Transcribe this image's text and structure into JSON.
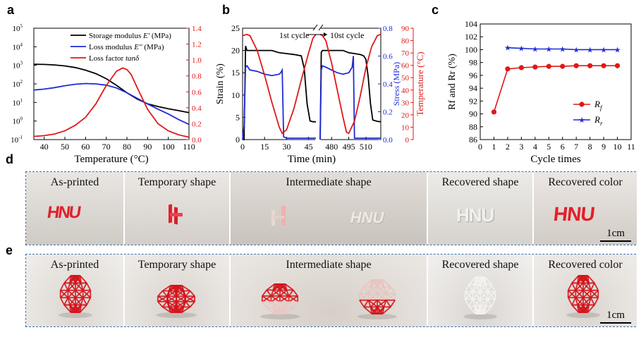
{
  "panels": {
    "a": "a",
    "b": "b",
    "c": "c",
    "d": "d",
    "e": "e"
  },
  "colors": {
    "black": "#000000",
    "blue": "#1f2bd6",
    "red": "#e01818",
    "border": "#3a6fb0"
  },
  "chart_data": [
    {
      "type": "line",
      "title": "",
      "xlabel": "Temperature (°C)",
      "ylabel_left": "",
      "ylabel_right": "",
      "xlim": [
        35,
        110
      ],
      "xticks": [
        "40",
        "50",
        "60",
        "70",
        "80",
        "90",
        "100",
        "110"
      ],
      "ylim_left_log": [
        -1,
        5
      ],
      "yticks_left": [
        {
          "base": "10",
          "exp": "5"
        },
        {
          "base": "10",
          "exp": "4"
        },
        {
          "base": "10",
          "exp": "3"
        },
        {
          "base": "10",
          "exp": "2"
        },
        {
          "base": "10",
          "exp": "1"
        },
        {
          "base": "10",
          "exp": "0"
        },
        {
          "base": "10",
          "exp": "-1"
        }
      ],
      "ylim_right": [
        0,
        1.4
      ],
      "yticks_right": [
        "0.0",
        "0.2",
        "0.4",
        "0.6",
        "0.8",
        "1.0",
        "1.2",
        "1.4"
      ],
      "legend": [
        {
          "text": "Storage modulus ",
          "italic": "E'",
          "unit": " (MPa)",
          "color": "#000000"
        },
        {
          "text": "Loss modulus ",
          "italic": "E''",
          "unit": " (MPa)",
          "color": "#1f2bd6"
        },
        {
          "text": "Loss factor ",
          "italic": "tanδ",
          "unit": "",
          "color": "#e01818"
        }
      ],
      "series": [
        {
          "name": "Storage modulus E' (MPa)",
          "axis": "left_log10",
          "color": "#000000",
          "x": [
            35,
            40,
            45,
            50,
            55,
            60,
            65,
            70,
            75,
            80,
            85,
            90,
            95,
            100,
            105,
            110
          ],
          "y": [
            3.06,
            3.05,
            3.02,
            2.97,
            2.88,
            2.74,
            2.55,
            2.28,
            1.92,
            1.52,
            1.18,
            0.93,
            0.78,
            0.66,
            0.56,
            0.45
          ]
        },
        {
          "name": "Loss modulus E'' (MPa)",
          "axis": "left_log10",
          "color": "#1f2bd6",
          "x": [
            35,
            40,
            45,
            50,
            55,
            60,
            65,
            70,
            75,
            80,
            85,
            90,
            95,
            100,
            105,
            110
          ],
          "y": [
            1.67,
            1.72,
            1.8,
            1.9,
            1.98,
            2.02,
            2.0,
            1.93,
            1.78,
            1.52,
            1.22,
            0.92,
            0.64,
            0.38,
            0.08,
            -0.18
          ]
        },
        {
          "name": "Loss factor tanδ",
          "axis": "right",
          "color": "#e01818",
          "x": [
            35,
            40,
            45,
            50,
            55,
            60,
            65,
            70,
            75,
            78,
            80,
            82,
            85,
            90,
            95,
            100,
            105,
            110
          ],
          "y": [
            0.04,
            0.05,
            0.07,
            0.11,
            0.18,
            0.28,
            0.45,
            0.68,
            0.86,
            0.9,
            0.88,
            0.82,
            0.65,
            0.38,
            0.2,
            0.11,
            0.06,
            0.03
          ]
        }
      ]
    },
    {
      "type": "line",
      "xlabel": "Time (min)",
      "ylabel_left": "Strain (%)",
      "ylabel_mid": "Stress (MPa)",
      "ylabel_right": "Temperature (°C)",
      "xticks_left": [
        "0",
        "15",
        "30",
        "45"
      ],
      "xticks_right": [
        "480",
        "495",
        "510"
      ],
      "xlim_left": [
        0,
        50
      ],
      "xlim_right": [
        470,
        523
      ],
      "ylim_strain": [
        0,
        25
      ],
      "yticks_strain": [
        "0",
        "5",
        "10",
        "15",
        "20",
        "25"
      ],
      "ylim_stress": [
        0,
        0.8
      ],
      "yticks_stress": [
        "0.0",
        "0.2",
        "0.4",
        "0.6",
        "0.8"
      ],
      "ylim_temp": [
        0,
        90
      ],
      "yticks_temp": [
        "0",
        "10",
        "20",
        "30",
        "40",
        "50",
        "60",
        "70",
        "80",
        "90"
      ],
      "annotations": [
        "1st cycle",
        "10st cycle"
      ],
      "series": [
        {
          "name": "Strain",
          "axis": "strain",
          "color": "#000000",
          "segment": "left",
          "x": [
            0,
            1,
            2,
            3,
            5,
            10,
            15,
            20,
            25,
            30,
            35,
            40,
            42,
            44,
            46,
            48,
            50
          ],
          "y": [
            0,
            0,
            21,
            20,
            20,
            20,
            20,
            20,
            19.5,
            19.3,
            19.1,
            18.8,
            16,
            8,
            4.2,
            4,
            4
          ]
        },
        {
          "name": "Strain",
          "axis": "strain",
          "color": "#000000",
          "segment": "right",
          "x": [
            470,
            471,
            472,
            475,
            480,
            485,
            490,
            495,
            500,
            505,
            508,
            510,
            512,
            514,
            516,
            520,
            523
          ],
          "y": [
            0,
            19.6,
            20,
            20,
            20,
            20,
            20,
            19.5,
            19.3,
            19.1,
            18.8,
            18,
            14,
            8,
            4.4,
            4.1,
            4
          ]
        },
        {
          "name": "Stress",
          "axis": "stress",
          "color": "#1f2bd6",
          "segment": "left",
          "x": [
            0,
            1,
            2,
            3,
            5,
            10,
            15,
            20,
            25,
            26,
            27,
            28,
            30,
            35,
            40,
            45,
            50
          ],
          "y": [
            0,
            0.1,
            0.52,
            0.53,
            0.5,
            0.49,
            0.47,
            0.46,
            0.47,
            0.48,
            0.5,
            0.02,
            0.01,
            0.01,
            0.01,
            0.01,
            0.01
          ]
        },
        {
          "name": "Stress",
          "axis": "stress",
          "color": "#1f2bd6",
          "segment": "right",
          "x": [
            470,
            471,
            472,
            475,
            480,
            485,
            490,
            495,
            498,
            499,
            500,
            505,
            510,
            515,
            520,
            523
          ],
          "y": [
            0,
            0.5,
            0.53,
            0.52,
            0.5,
            0.48,
            0.47,
            0.48,
            0.52,
            0.6,
            0.01,
            0.01,
            0.01,
            0.01,
            0.01,
            0.01
          ]
        },
        {
          "name": "Temperature",
          "axis": "temp",
          "color": "#e01818",
          "segment": "left",
          "x": [
            0,
            3,
            5,
            10,
            15,
            20,
            25,
            27,
            30,
            35,
            40,
            45,
            48,
            50
          ],
          "y": [
            84,
            85,
            84,
            72,
            52,
            30,
            10,
            5,
            8,
            25,
            48,
            70,
            82,
            85
          ]
        },
        {
          "name": "Temperature",
          "axis": "temp",
          "color": "#e01818",
          "segment": "right",
          "x": [
            470,
            472,
            475,
            480,
            485,
            490,
            493,
            495,
            500,
            505,
            510,
            515,
            520,
            523
          ],
          "y": [
            85,
            84,
            80,
            62,
            40,
            18,
            6,
            5,
            15,
            35,
            58,
            75,
            84,
            85
          ]
        }
      ]
    },
    {
      "type": "line",
      "xlabel": "Cycle times",
      "ylabel": "Rf and Rr (%)",
      "xlim": [
        0,
        11
      ],
      "xticks": [
        "0",
        "1",
        "2",
        "3",
        "4",
        "5",
        "6",
        "7",
        "8",
        "9",
        "10",
        "11"
      ],
      "ylim": [
        86,
        104
      ],
      "yticks": [
        "86",
        "88",
        "90",
        "92",
        "94",
        "96",
        "98",
        "100",
        "102",
        "104"
      ],
      "legend": [
        {
          "text": "R",
          "sub": "f",
          "color": "#e01818"
        },
        {
          "text": "R",
          "sub": "r",
          "color": "#1f2bd6"
        }
      ],
      "series": [
        {
          "name": "Rf",
          "color": "#e01818",
          "marker": "circle",
          "x": [
            1,
            2,
            3,
            4,
            5,
            6,
            7,
            8,
            9,
            10
          ],
          "y": [
            90.3,
            97.0,
            97.2,
            97.3,
            97.4,
            97.4,
            97.5,
            97.5,
            97.5,
            97.5
          ]
        },
        {
          "name": "Rr",
          "color": "#1f2bd6",
          "marker": "star",
          "x": [
            2,
            3,
            4,
            5,
            6,
            7,
            8,
            9,
            10
          ],
          "y": [
            100.3,
            100.2,
            100.1,
            100.1,
            100.1,
            100.0,
            100.0,
            100.0,
            100.0
          ]
        }
      ]
    }
  ],
  "photos_d": {
    "captions": [
      "As-printed",
      "Temporary shape",
      "Intermediate shape",
      "Recovered shape",
      "Recovered color"
    ],
    "logo_text": "HNU",
    "scale": "1cm"
  },
  "photos_e": {
    "captions": [
      "As-printed",
      "Temporary shape",
      "Intermediate shape",
      "Recovered shape",
      "Recovered color"
    ],
    "scale": "1cm"
  }
}
